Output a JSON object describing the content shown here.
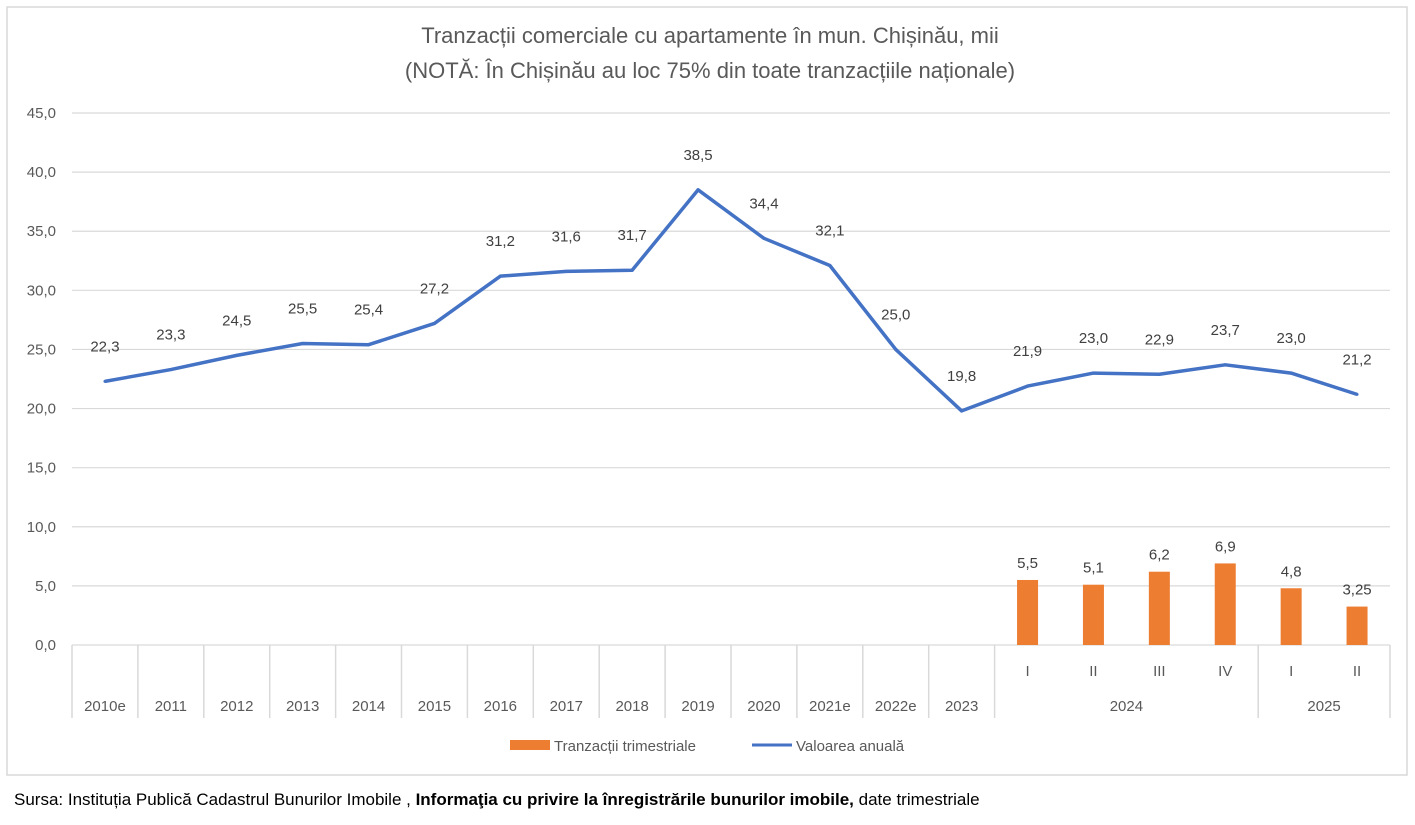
{
  "chart_data": {
    "type": "bar+line",
    "title": "Tranzacții comerciale cu apartamente în mun. Chișinău, mii",
    "subtitle": "(NOTĂ: În Chișinău au loc 75% din toate tranzacțiile naționale)",
    "categories": [
      "2010e",
      "2011",
      "2012",
      "2013",
      "2014",
      "2015",
      "2016",
      "2017",
      "2018",
      "2019",
      "2020",
      "2021e",
      "2022e",
      "2023",
      "I",
      "II",
      "III",
      "IV",
      "I",
      "II"
    ],
    "category_groups": [
      {
        "label": "2024",
        "items": [
          "I",
          "II",
          "III",
          "IV"
        ]
      },
      {
        "label": "2025",
        "items": [
          "I",
          "II"
        ]
      }
    ],
    "series": [
      {
        "name": "Tranzacții trimestriale",
        "type": "bar",
        "color": "#ED7D31",
        "values": [
          null,
          null,
          null,
          null,
          null,
          null,
          null,
          null,
          null,
          null,
          null,
          null,
          null,
          null,
          5.5,
          5.1,
          6.2,
          6.9,
          4.8,
          3.25
        ],
        "labels": [
          null,
          null,
          null,
          null,
          null,
          null,
          null,
          null,
          null,
          null,
          null,
          null,
          null,
          null,
          "5,5",
          "5,1",
          "6,2",
          "6,9",
          "4,8",
          "3,25"
        ]
      },
      {
        "name": "Valoarea anuală",
        "type": "line",
        "color": "#4472C4",
        "values": [
          22.3,
          23.3,
          24.5,
          25.5,
          25.4,
          27.2,
          31.2,
          31.6,
          31.7,
          38.5,
          34.4,
          32.1,
          25.0,
          19.8,
          21.9,
          23.0,
          22.9,
          23.7,
          23.0,
          21.2
        ],
        "labels": [
          "22,3",
          "23,3",
          "24,5",
          "25,5",
          "25,4",
          "27,2",
          "31,2",
          "31,6",
          "31,7",
          "38,5",
          "34,4",
          "32,1",
          "25,0",
          "19,8",
          "21,9",
          "23,0",
          "22,9",
          "23,7",
          "23,0",
          "21,2"
        ]
      }
    ],
    "ylim": [
      0,
      45
    ],
    "yticks": [
      "0,0",
      "5,0",
      "10,0",
      "15,0",
      "20,0",
      "25,0",
      "30,0",
      "35,0",
      "40,0",
      "45,0"
    ],
    "grid": true,
    "legend": "bottom"
  },
  "source": {
    "prefix": "Sursa: Instituția Publică Cadastrul Bunurilor Imobile , ",
    "bold": "Informaţia cu privire la înregistrările bunurilor imobile,",
    "suffix": " date trimestriale"
  }
}
